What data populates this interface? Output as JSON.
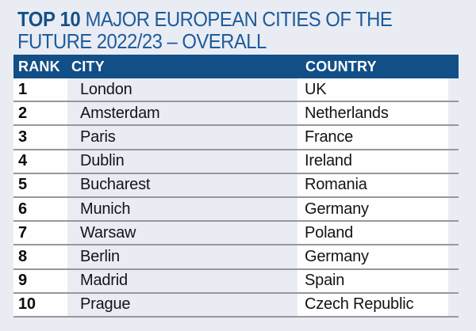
{
  "title": {
    "bold": "TOP 10",
    "line1_rest": " MAJOR EUROPEAN CITIES OF THE",
    "line2": "FUTURE 2022/23 – OVERALL"
  },
  "table": {
    "columns": [
      "RANK",
      "CITY",
      "COUNTRY"
    ],
    "rows": [
      {
        "rank": "1",
        "city": "London",
        "country": "UK"
      },
      {
        "rank": "2",
        "city": "Amsterdam",
        "country": "Netherlands"
      },
      {
        "rank": "3",
        "city": "Paris",
        "country": "France"
      },
      {
        "rank": "4",
        "city": "Dublin",
        "country": "Ireland"
      },
      {
        "rank": "5",
        "city": "Bucharest",
        "country": "Romania"
      },
      {
        "rank": "6",
        "city": "Munich",
        "country": "Germany"
      },
      {
        "rank": "7",
        "city": "Warsaw",
        "country": "Poland"
      },
      {
        "rank": "8",
        "city": "Berlin",
        "country": "Germany"
      },
      {
        "rank": "9",
        "city": "Madrid",
        "country": "Spain"
      },
      {
        "rank": "10",
        "city": "Prague",
        "country": "Czech Republic"
      }
    ]
  },
  "colors": {
    "page_background": "#eaecf4",
    "header_bar": "#124f87",
    "title_blue": "#1d5c9c",
    "title_bold_blue": "#155189",
    "row_divider": "#97979c",
    "cell_white": "#fefefe",
    "body_text": "#141418"
  }
}
